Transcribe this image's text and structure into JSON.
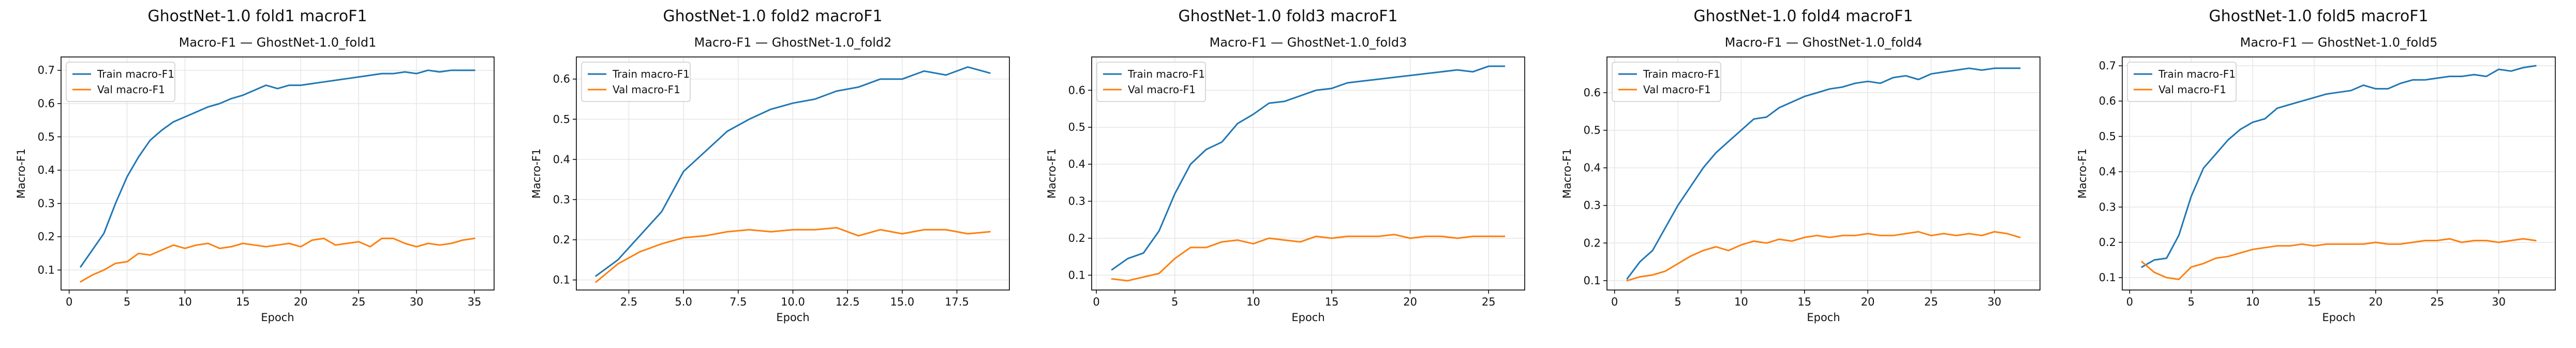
{
  "chart_data": [
    {
      "type": "line",
      "suptitle": "GhostNet-1.0 fold1 macroF1",
      "title": "Macro-F1 — GhostNet-1.0_fold1",
      "xlabel": "Epoch",
      "ylabel": "Macro-F1",
      "xlim": [
        -0.7,
        36.7
      ],
      "ylim": [
        0.04,
        0.74
      ],
      "xticks": [
        0,
        5,
        10,
        15,
        20,
        25,
        30,
        35
      ],
      "xtick_labels": [
        "0",
        "5",
        "10",
        "15",
        "20",
        "25",
        "30",
        "35"
      ],
      "yticks": [
        0.1,
        0.2,
        0.3,
        0.4,
        0.5,
        0.6,
        0.7
      ],
      "ytick_labels": [
        "0.1",
        "0.2",
        "0.3",
        "0.4",
        "0.5",
        "0.6",
        "0.7"
      ],
      "grid": true,
      "legend_position": "upper-left",
      "x": [
        1,
        2,
        3,
        4,
        5,
        6,
        7,
        8,
        9,
        10,
        11,
        12,
        13,
        14,
        15,
        16,
        17,
        18,
        19,
        20,
        21,
        22,
        23,
        24,
        25,
        26,
        27,
        28,
        29,
        30,
        31,
        32,
        33,
        34,
        35
      ],
      "series": [
        {
          "name": "Train macro-F1",
          "color": "#1f77b4",
          "values": [
            0.11,
            0.16,
            0.21,
            0.3,
            0.38,
            0.44,
            0.49,
            0.52,
            0.545,
            0.56,
            0.575,
            0.59,
            0.6,
            0.615,
            0.625,
            0.64,
            0.655,
            0.645,
            0.655,
            0.655,
            0.66,
            0.665,
            0.67,
            0.675,
            0.68,
            0.685,
            0.69,
            0.69,
            0.695,
            0.69,
            0.7,
            0.695,
            0.7,
            0.7,
            0.7
          ]
        },
        {
          "name": "Val macro-F1",
          "color": "#ff7f0e",
          "values": [
            0.065,
            0.085,
            0.1,
            0.12,
            0.125,
            0.15,
            0.145,
            0.16,
            0.175,
            0.165,
            0.175,
            0.18,
            0.165,
            0.17,
            0.18,
            0.175,
            0.17,
            0.175,
            0.18,
            0.17,
            0.19,
            0.195,
            0.175,
            0.18,
            0.185,
            0.17,
            0.195,
            0.195,
            0.18,
            0.17,
            0.18,
            0.175,
            0.18,
            0.19,
            0.195
          ]
        }
      ]
    },
    {
      "type": "line",
      "suptitle": "GhostNet-1.0 fold2 macroF1",
      "title": "Macro-F1 — GhostNet-1.0_fold2",
      "xlabel": "Epoch",
      "ylabel": "Macro-F1",
      "xlim": [
        0.1,
        19.9
      ],
      "ylim": [
        0.075,
        0.655
      ],
      "xticks": [
        2.5,
        5.0,
        7.5,
        10.0,
        12.5,
        15.0,
        17.5
      ],
      "xtick_labels": [
        "2.5",
        "5.0",
        "7.5",
        "10.0",
        "12.5",
        "15.0",
        "17.5"
      ],
      "yticks": [
        0.1,
        0.2,
        0.3,
        0.4,
        0.5,
        0.6
      ],
      "ytick_labels": [
        "0.1",
        "0.2",
        "0.3",
        "0.4",
        "0.5",
        "0.6"
      ],
      "grid": true,
      "legend_position": "upper-left",
      "x": [
        1,
        2,
        3,
        4,
        5,
        6,
        7,
        8,
        9,
        10,
        11,
        12,
        13,
        14,
        15,
        16,
        17,
        18,
        19
      ],
      "series": [
        {
          "name": "Train macro-F1",
          "color": "#1f77b4",
          "values": [
            0.11,
            0.15,
            0.21,
            0.27,
            0.37,
            0.42,
            0.47,
            0.5,
            0.525,
            0.54,
            0.55,
            0.57,
            0.58,
            0.6,
            0.6,
            0.62,
            0.61,
            0.63,
            0.615
          ]
        },
        {
          "name": "Val macro-F1",
          "color": "#ff7f0e",
          "values": [
            0.095,
            0.14,
            0.17,
            0.19,
            0.205,
            0.21,
            0.22,
            0.225,
            0.22,
            0.225,
            0.225,
            0.23,
            0.21,
            0.225,
            0.215,
            0.225,
            0.225,
            0.215,
            0.22
          ]
        }
      ]
    },
    {
      "type": "line",
      "suptitle": "GhostNet-1.0 fold3 macroF1",
      "title": "Macro-F1 — GhostNet-1.0_fold3",
      "xlabel": "Epoch",
      "ylabel": "Macro-F1",
      "xlim": [
        -0.3,
        27.3
      ],
      "ylim": [
        0.06,
        0.69
      ],
      "xticks": [
        0,
        5,
        10,
        15,
        20,
        25
      ],
      "xtick_labels": [
        "0",
        "5",
        "10",
        "15",
        "20",
        "25"
      ],
      "yticks": [
        0.1,
        0.2,
        0.3,
        0.4,
        0.5,
        0.6
      ],
      "ytick_labels": [
        "0.1",
        "0.2",
        "0.3",
        "0.4",
        "0.5",
        "0.6"
      ],
      "grid": true,
      "legend_position": "upper-left",
      "x": [
        1,
        2,
        3,
        4,
        5,
        6,
        7,
        8,
        9,
        10,
        11,
        12,
        13,
        14,
        15,
        16,
        17,
        18,
        19,
        20,
        21,
        22,
        23,
        24,
        25,
        26
      ],
      "series": [
        {
          "name": "Train macro-F1",
          "color": "#1f77b4",
          "values": [
            0.115,
            0.145,
            0.16,
            0.22,
            0.32,
            0.4,
            0.44,
            0.46,
            0.51,
            0.535,
            0.565,
            0.57,
            0.585,
            0.6,
            0.605,
            0.62,
            0.625,
            0.63,
            0.635,
            0.64,
            0.645,
            0.65,
            0.655,
            0.65,
            0.665,
            0.665
          ]
        },
        {
          "name": "Val macro-F1",
          "color": "#ff7f0e",
          "values": [
            0.09,
            0.085,
            0.095,
            0.105,
            0.145,
            0.175,
            0.175,
            0.19,
            0.195,
            0.185,
            0.2,
            0.195,
            0.19,
            0.205,
            0.2,
            0.205,
            0.205,
            0.205,
            0.21,
            0.2,
            0.205,
            0.205,
            0.2,
            0.205,
            0.205,
            0.205
          ]
        }
      ]
    },
    {
      "type": "line",
      "suptitle": "GhostNet-1.0 fold4 macroF1",
      "title": "Macro-F1 — GhostNet-1.0_fold4",
      "xlabel": "Epoch",
      "ylabel": "Macro-F1",
      "xlim": [
        -0.6,
        33.6
      ],
      "ylim": [
        0.075,
        0.695
      ],
      "xticks": [
        0,
        5,
        10,
        15,
        20,
        25,
        30
      ],
      "xtick_labels": [
        "0",
        "5",
        "10",
        "15",
        "20",
        "25",
        "30"
      ],
      "yticks": [
        0.1,
        0.2,
        0.3,
        0.4,
        0.5,
        0.6
      ],
      "ytick_labels": [
        "0.1",
        "0.2",
        "0.3",
        "0.4",
        "0.5",
        "0.6"
      ],
      "grid": true,
      "legend_position": "upper-left",
      "x": [
        1,
        2,
        3,
        4,
        5,
        6,
        7,
        8,
        9,
        10,
        11,
        12,
        13,
        14,
        15,
        16,
        17,
        18,
        19,
        20,
        21,
        22,
        23,
        24,
        25,
        26,
        27,
        28,
        29,
        30,
        31,
        32
      ],
      "series": [
        {
          "name": "Train macro-F1",
          "color": "#1f77b4",
          "values": [
            0.105,
            0.15,
            0.18,
            0.24,
            0.3,
            0.35,
            0.4,
            0.44,
            0.47,
            0.5,
            0.53,
            0.535,
            0.56,
            0.575,
            0.59,
            0.6,
            0.61,
            0.615,
            0.625,
            0.63,
            0.625,
            0.64,
            0.645,
            0.635,
            0.65,
            0.655,
            0.66,
            0.665,
            0.66,
            0.665,
            0.665,
            0.665
          ]
        },
        {
          "name": "Val macro-F1",
          "color": "#ff7f0e",
          "values": [
            0.1,
            0.11,
            0.115,
            0.125,
            0.145,
            0.165,
            0.18,
            0.19,
            0.18,
            0.195,
            0.205,
            0.2,
            0.21,
            0.205,
            0.215,
            0.22,
            0.215,
            0.22,
            0.22,
            0.225,
            0.22,
            0.22,
            0.225,
            0.23,
            0.22,
            0.225,
            0.22,
            0.225,
            0.22,
            0.23,
            0.225,
            0.215
          ]
        }
      ]
    },
    {
      "type": "line",
      "suptitle": "GhostNet-1.0 fold5 macroF1",
      "title": "Macro-F1 — GhostNet-1.0_fold5",
      "xlabel": "Epoch",
      "ylabel": "Macro-F1",
      "xlim": [
        -0.6,
        34.6
      ],
      "ylim": [
        0.065,
        0.725
      ],
      "xticks": [
        0,
        5,
        10,
        15,
        20,
        25,
        30
      ],
      "xtick_labels": [
        "0",
        "5",
        "10",
        "15",
        "20",
        "25",
        "30"
      ],
      "yticks": [
        0.1,
        0.2,
        0.3,
        0.4,
        0.5,
        0.6,
        0.7
      ],
      "ytick_labels": [
        "0.1",
        "0.2",
        "0.3",
        "0.4",
        "0.5",
        "0.6",
        "0.7"
      ],
      "grid": true,
      "legend_position": "upper-left",
      "x": [
        1,
        2,
        3,
        4,
        5,
        6,
        7,
        8,
        9,
        10,
        11,
        12,
        13,
        14,
        15,
        16,
        17,
        18,
        19,
        20,
        21,
        22,
        23,
        24,
        25,
        26,
        27,
        28,
        29,
        30,
        31,
        32,
        33
      ],
      "series": [
        {
          "name": "Train macro-F1",
          "color": "#1f77b4",
          "values": [
            0.13,
            0.15,
            0.155,
            0.22,
            0.33,
            0.41,
            0.45,
            0.49,
            0.52,
            0.54,
            0.55,
            0.58,
            0.59,
            0.6,
            0.61,
            0.62,
            0.625,
            0.63,
            0.645,
            0.635,
            0.635,
            0.65,
            0.66,
            0.66,
            0.665,
            0.67,
            0.67,
            0.675,
            0.67,
            0.69,
            0.685,
            0.695,
            0.7
          ]
        },
        {
          "name": "Val macro-F1",
          "color": "#ff7f0e",
          "values": [
            0.145,
            0.115,
            0.1,
            0.095,
            0.13,
            0.14,
            0.155,
            0.16,
            0.17,
            0.18,
            0.185,
            0.19,
            0.19,
            0.195,
            0.19,
            0.195,
            0.195,
            0.195,
            0.195,
            0.2,
            0.195,
            0.195,
            0.2,
            0.205,
            0.205,
            0.21,
            0.2,
            0.205,
            0.205,
            0.2,
            0.205,
            0.21,
            0.205
          ]
        }
      ]
    }
  ]
}
